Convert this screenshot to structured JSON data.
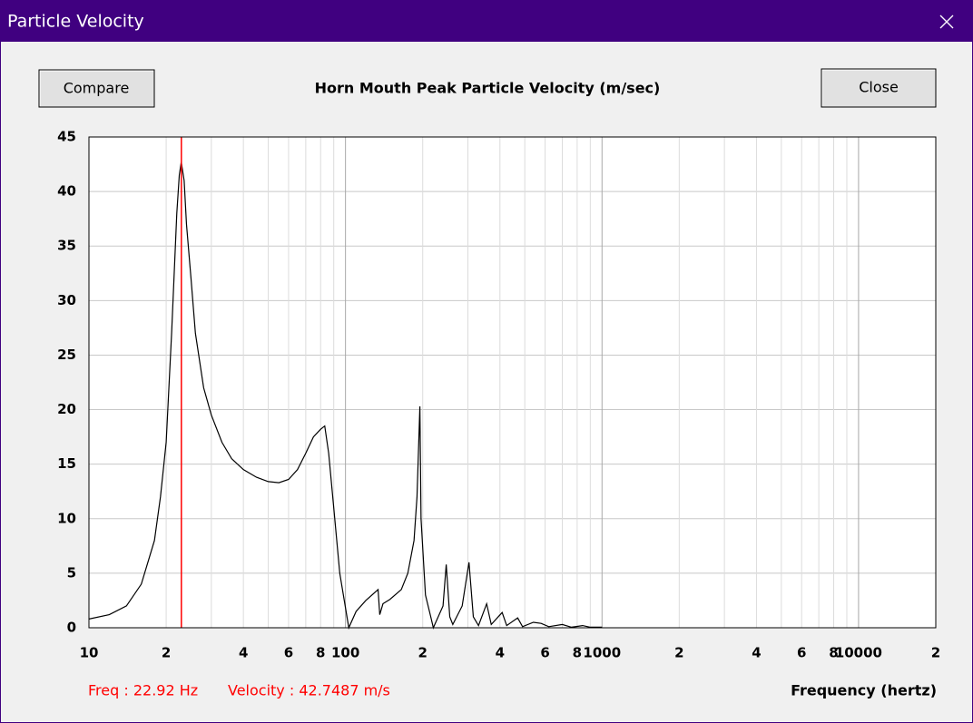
{
  "window": {
    "title": "Particle Velocity"
  },
  "buttons": [
    {
      "label": "Compare"
    },
    {
      "label": "Close"
    }
  ],
  "chart_data": {
    "type": "line",
    "title": "Horn Mouth Peak Particle Velocity (m/sec)",
    "xlabel": "Frequency (hertz)",
    "xscale": "log",
    "grid": true,
    "x": [
      10,
      12,
      14,
      16,
      18,
      19,
      20,
      21,
      22,
      22.5,
      22.9,
      23.5,
      24,
      25,
      26,
      28,
      30,
      33,
      36,
      40,
      45,
      50,
      55,
      60,
      65,
      70,
      75,
      80,
      83,
      86,
      90,
      95,
      103,
      110,
      120,
      134,
      136,
      140,
      149,
      165,
      175,
      185,
      190,
      195,
      197,
      205,
      215,
      220,
      240,
      247,
      255,
      262,
      285,
      303,
      315,
      330,
      355,
      370,
      408,
      425,
      469,
      490,
      540,
      579,
      620,
      700,
      760,
      840,
      900,
      1000
    ],
    "series": [
      {
        "color": "#000000",
        "values": [
          0.8,
          1.2,
          2.0,
          4,
          8,
          12,
          17,
          27,
          38,
          41.5,
          42.7,
          41,
          37,
          32,
          27,
          22,
          19.5,
          17,
          15.5,
          14.5,
          13.8,
          13.4,
          13.3,
          13.6,
          14.5,
          16,
          17.5,
          18.2,
          18.5,
          16,
          11,
          5,
          0,
          1.5,
          2.5,
          3.5,
          1.2,
          2.2,
          2.6,
          3.5,
          5,
          8,
          12,
          20.3,
          10,
          3,
          1,
          0,
          2,
          5.8,
          1,
          0.3,
          2,
          6,
          1,
          0.2,
          2.2,
          0.3,
          1.4,
          0.2,
          0.9,
          0.1,
          0.5,
          0.4,
          0.1,
          0.3,
          0.05,
          0.2,
          0.05,
          0.05
        ]
      }
    ],
    "xlim": [
      10,
      20000
    ],
    "ylim": [
      0,
      45
    ],
    "yticks": [
      0,
      5,
      10,
      15,
      20,
      25,
      30,
      35,
      40,
      45
    ],
    "xticks": [
      10,
      {
        "value": 20,
        "label": "2"
      },
      {
        "value": 40,
        "label": "4"
      },
      {
        "value": 60,
        "label": "6"
      },
      {
        "value": 80,
        "label": "8"
      },
      100,
      {
        "value": 200,
        "label": "2"
      },
      {
        "value": 400,
        "label": "4"
      },
      {
        "value": 600,
        "label": "6"
      },
      {
        "value": 800,
        "label": "8"
      },
      1000,
      {
        "value": 2000,
        "label": "2"
      },
      {
        "value": 4000,
        "label": "4"
      },
      {
        "value": 6000,
        "label": "6"
      },
      {
        "value": 8000,
        "label": "8"
      },
      10000,
      {
        "value": 20000,
        "label": "2"
      }
    ],
    "minor_xticks": [
      30,
      50,
      70,
      90,
      300,
      500,
      700,
      900,
      3000,
      5000,
      7000,
      9000
    ],
    "cursor": {
      "x": 22.92,
      "color": "#ff0000"
    },
    "annotations": [
      "Freq : 22.92 Hz",
      "Velocity : 42.7487 m/s"
    ],
    "annotation_color": "#ff0000"
  }
}
